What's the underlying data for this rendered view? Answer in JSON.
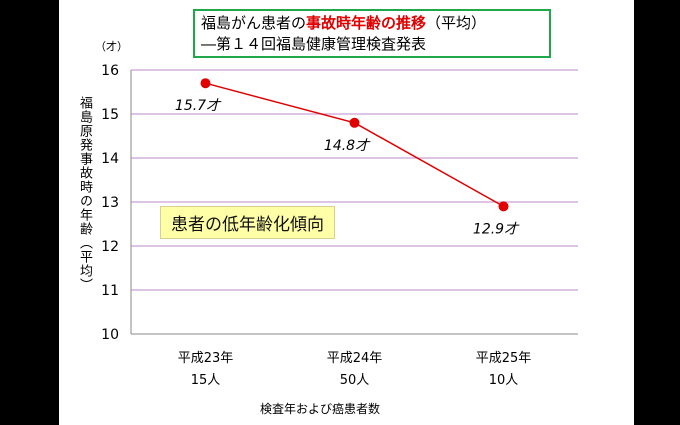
{
  "title": {
    "line1_prefix": "福島がん患者の",
    "line1_highlight": "事故時年齢の推移",
    "line1_suffix": "（平均）",
    "line2": "―第１４回福島健康管理検査発表"
  },
  "colors": {
    "series": "#e00000",
    "grid": "#c9a2d6",
    "title_border": "#1fa84a",
    "note_bg": "#ffffa8"
  },
  "note": "患者の低年齢化傾向",
  "chart_data": {
    "type": "line",
    "unit_label": "（才）",
    "ylabel": "福島原発事故時の年齢（平均）",
    "xlabel": "検査年および癌患者数",
    "ylim": [
      10,
      16
    ],
    "yticks": [
      "10",
      "11",
      "12",
      "13",
      "14",
      "15",
      "16"
    ],
    "grid": true,
    "categories": [
      {
        "year": "平成23年",
        "count": "15人"
      },
      {
        "year": "平成24年",
        "count": "50人"
      },
      {
        "year": "平成25年",
        "count": "10人"
      }
    ],
    "values": [
      15.7,
      14.8,
      12.9
    ],
    "data_labels": [
      "15.7才",
      "14.8才",
      "12.9才"
    ]
  }
}
